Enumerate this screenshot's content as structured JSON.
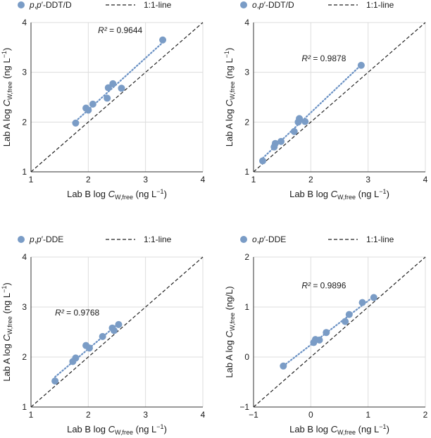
{
  "figure": {
    "panels_order": [
      "top-left",
      "top-right",
      "bottom-left",
      "bottom-right"
    ]
  },
  "chart_data": [
    {
      "type": "scatter",
      "position": "top-left",
      "legend": {
        "series_label_prefix": "p",
        "series_label_mid": ",p′-",
        "series_label_suffix": "DDT/D",
        "line_label": "1:1-line"
      },
      "r2_label": "= 0.9644",
      "r2_symbol": "R²",
      "xlabel_text": "Lab B log ",
      "xlabel_var": "C",
      "xlabel_sub": "W,free",
      "xlabel_unit": " (ng L",
      "xlabel_exp": "−1",
      "xlabel_close": ")",
      "ylabel_text": "Lab A log ",
      "ylabel_var": "C",
      "ylabel_sub": "W,free",
      "ylabel_unit": " (ng L",
      "ylabel_exp": "−1",
      "ylabel_close": ")",
      "xlim": [
        1,
        4
      ],
      "ylim": [
        1,
        4
      ],
      "xticks": [
        "1",
        "2",
        "3",
        "4"
      ],
      "yticks": [
        "1",
        "2",
        "3",
        "4"
      ],
      "x": [
        1.78,
        1.96,
        2.0,
        2.08,
        2.33,
        2.35,
        2.43,
        2.58,
        3.3
      ],
      "y": [
        1.98,
        2.28,
        2.24,
        2.36,
        2.48,
        2.69,
        2.77,
        2.68,
        3.65
      ],
      "colors": {
        "points": "#7a9cc6",
        "trend": "#6a91c4",
        "identity": "#222222",
        "grid": "#dddddd"
      }
    },
    {
      "type": "scatter",
      "position": "top-right",
      "legend": {
        "series_label_prefix": "o",
        "series_label_mid": ",p′-",
        "series_label_suffix": "DDT/D",
        "line_label": "1:1-line"
      },
      "r2_label": "= 0.9878",
      "r2_symbol": "R²",
      "xlabel_text": "Lab B log ",
      "xlabel_var": "C",
      "xlabel_sub": "W,free",
      "xlabel_unit": " (ng L",
      "xlabel_exp": "−1",
      "xlabel_close": ")",
      "ylabel_text": "Lab A log ",
      "ylabel_var": "C",
      "ylabel_sub": "W,free",
      "ylabel_unit": " (ng L",
      "ylabel_exp": "−1",
      "ylabel_close": ")",
      "xlim": [
        1,
        4
      ],
      "ylim": [
        1,
        4
      ],
      "xticks": [
        "1",
        "2",
        "3",
        "4"
      ],
      "yticks": [
        "1",
        "2",
        "3",
        "4"
      ],
      "x": [
        1.16,
        1.36,
        1.38,
        1.48,
        1.71,
        1.78,
        1.8,
        1.9,
        2.88
      ],
      "y": [
        1.22,
        1.5,
        1.57,
        1.61,
        1.81,
        2.0,
        2.07,
        2.01,
        3.14
      ],
      "colors": {
        "points": "#7a9cc6",
        "trend": "#6a91c4",
        "identity": "#222222",
        "grid": "#dddddd"
      }
    },
    {
      "type": "scatter",
      "position": "bottom-left",
      "legend": {
        "series_label_prefix": "p",
        "series_label_mid": ",p′-",
        "series_label_suffix": "DDE",
        "line_label": "1:1-line"
      },
      "r2_label": "= 0.9768",
      "r2_symbol": "R²",
      "xlabel_text": "Lab B log ",
      "xlabel_var": "C",
      "xlabel_sub": "W,free",
      "xlabel_unit": " (ng L",
      "xlabel_exp": "−1",
      "xlabel_close": ")",
      "ylabel_text": "Lab A log ",
      "ylabel_var": "C",
      "ylabel_sub": "W,free",
      "ylabel_unit": " (ng L",
      "ylabel_exp": "−1",
      "ylabel_close": ")",
      "xlim": [
        1,
        4
      ],
      "ylim": [
        1,
        4
      ],
      "xticks": [
        "1",
        "2",
        "3",
        "4"
      ],
      "yticks": [
        "1",
        "2",
        "3",
        "4"
      ],
      "x": [
        1.42,
        1.73,
        1.78,
        1.96,
        2.02,
        2.25,
        2.42,
        2.45,
        2.53
      ],
      "y": [
        1.52,
        1.91,
        1.98,
        2.23,
        2.18,
        2.41,
        2.58,
        2.53,
        2.65
      ],
      "colors": {
        "points": "#7a9cc6",
        "trend": "#6a91c4",
        "identity": "#222222",
        "grid": "#dddddd"
      }
    },
    {
      "type": "scatter",
      "position": "bottom-right",
      "legend": {
        "series_label_prefix": "o",
        "series_label_mid": ",p′-",
        "series_label_suffix": "DDE",
        "line_label": "1:1-line"
      },
      "r2_label": "= 0.9896",
      "r2_symbol": "R²",
      "xlabel_text": "Lab B log ",
      "xlabel_var": "C",
      "xlabel_sub": "W,free",
      "xlabel_unit": " (ng L",
      "xlabel_exp": "−1",
      "xlabel_close": ")",
      "ylabel_text": "Lab A log ",
      "ylabel_var": "C",
      "ylabel_sub": "W,free",
      "ylabel_unit": " (ng/L)",
      "ylabel_exp": "",
      "ylabel_close": "",
      "xlim": [
        -1,
        2
      ],
      "ylim": [
        -1,
        2
      ],
      "xticks": [
        "−1",
        "0",
        "1",
        "2"
      ],
      "yticks": [
        "−1",
        "0",
        "1",
        "2"
      ],
      "x": [
        -0.48,
        0.05,
        0.08,
        0.15,
        0.27,
        0.6,
        0.67,
        0.9,
        1.1
      ],
      "y": [
        -0.18,
        0.29,
        0.35,
        0.34,
        0.49,
        0.71,
        0.85,
        1.09,
        1.19
      ],
      "colors": {
        "points": "#7a9cc6",
        "trend": "#6a91c4",
        "identity": "#222222",
        "grid": "#dddddd"
      }
    }
  ]
}
